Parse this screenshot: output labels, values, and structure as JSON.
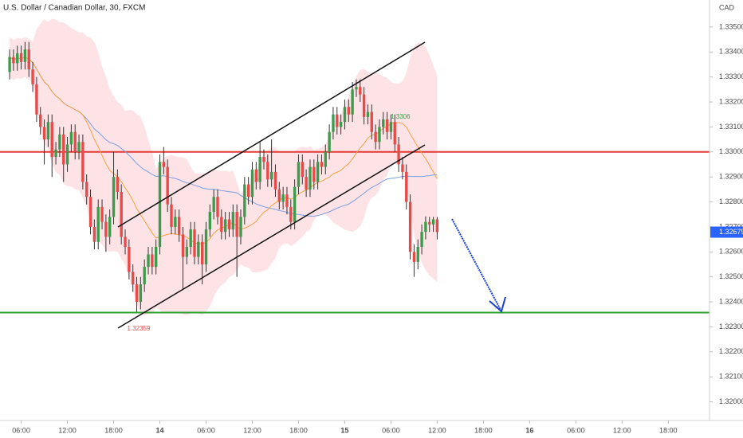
{
  "chart_data": {
    "type": "candlestick",
    "title": "U.S. Dollar / Canadian Dollar, 30, FXCM",
    "y_axis_label": "CAD",
    "up_color": "#3d9b4c",
    "down_color": "#e84a4a",
    "ylim": [
      1.33608,
      1.31919
    ],
    "yticks": [
      {
        "value": 1.335,
        "label": "1.33500"
      },
      {
        "value": 1.334,
        "label": "1.33400"
      },
      {
        "value": 1.333,
        "label": "1.33300"
      },
      {
        "value": 1.332,
        "label": "1.33200"
      },
      {
        "value": 1.331,
        "label": "1.33100"
      },
      {
        "value": 1.33,
        "label": "1.33000"
      },
      {
        "value": 1.329,
        "label": "1.32900"
      },
      {
        "value": 1.328,
        "label": "1.32800"
      },
      {
        "value": 1.327,
        "label": "1.32700"
      },
      {
        "value": 1.326,
        "label": "1.32600"
      },
      {
        "value": 1.325,
        "label": "1.32500"
      },
      {
        "value": 1.324,
        "label": "1.32400"
      },
      {
        "value": 1.323,
        "label": "1.32300"
      },
      {
        "value": 1.322,
        "label": "1.32200"
      },
      {
        "value": 1.321,
        "label": "1.32100"
      },
      {
        "value": 1.32,
        "label": "1.32000"
      }
    ],
    "xlim": [
      -2,
      182.2
    ],
    "xticks": [
      {
        "value": 3.5,
        "label": "06:00"
      },
      {
        "value": 15.5,
        "label": "12:00"
      },
      {
        "value": 27.5,
        "label": "18:00"
      },
      {
        "value": 39.5,
        "label": "14"
      },
      {
        "value": 51.5,
        "label": "06:00"
      },
      {
        "value": 63.5,
        "label": "12:00"
      },
      {
        "value": 75.5,
        "label": "18:00"
      },
      {
        "value": 87.5,
        "label": "15"
      },
      {
        "value": 99.5,
        "label": "06:00"
      },
      {
        "value": 111.5,
        "label": "12:00"
      },
      {
        "value": 123.5,
        "label": "18:00"
      },
      {
        "value": 135.5,
        "label": "16"
      },
      {
        "value": 147.5,
        "label": "06:00"
      },
      {
        "value": 159.5,
        "label": "12:00"
      },
      {
        "value": 171.5,
        "label": "18:00"
      }
    ],
    "levels": [
      {
        "value": 1.33,
        "color": "#e53935"
      },
      {
        "value": 1.32357,
        "color": "#2ca02c"
      }
    ],
    "candles": [
      [
        1.3332,
        1.3341,
        1.3329,
        1.3338
      ],
      [
        1.3338,
        1.3341,
        1.33325,
        1.33355
      ],
      [
        1.33355,
        1.33425,
        1.33325,
        1.33395
      ],
      [
        1.33395,
        1.33425,
        1.3333,
        1.3336
      ],
      [
        1.3336,
        1.3344,
        1.3333,
        1.3341
      ],
      [
        1.3341,
        1.3344,
        1.333,
        1.3333
      ],
      [
        1.3333,
        1.3336,
        1.3324,
        1.3327
      ],
      [
        1.3327,
        1.333,
        1.3312,
        1.3315
      ],
      [
        1.3315,
        1.3318,
        1.3307,
        1.331
      ],
      [
        1.331,
        1.3313,
        1.3295,
        1.3305
      ],
      [
        1.3305,
        1.3315,
        1.3302,
        1.3312
      ],
      [
        1.3312,
        1.3315,
        1.329,
        1.3298
      ],
      [
        1.3298,
        1.3304,
        1.3295,
        1.3301
      ],
      [
        1.3301,
        1.331,
        1.3298,
        1.3307
      ],
      [
        1.3307,
        1.331,
        1.3288,
        1.3295
      ],
      [
        1.3295,
        1.3306,
        1.3292,
        1.3303
      ],
      [
        1.3303,
        1.3311,
        1.33,
        1.3308
      ],
      [
        1.3308,
        1.3311,
        1.3297,
        1.33
      ],
      [
        1.33,
        1.3307,
        1.3297,
        1.3304
      ],
      [
        1.3304,
        1.3307,
        1.3285,
        1.3288
      ],
      [
        1.3288,
        1.3291,
        1.3279,
        1.3282
      ],
      [
        1.3282,
        1.3285,
        1.3267,
        1.327
      ],
      [
        1.327,
        1.3273,
        1.3261,
        1.3264
      ],
      [
        1.3264,
        1.3281,
        1.3261,
        1.3278
      ],
      [
        1.3278,
        1.3281,
        1.3269,
        1.3272
      ],
      [
        1.3272,
        1.3275,
        1.326,
        1.3266
      ],
      [
        1.3266,
        1.3277,
        1.3263,
        1.3274
      ],
      [
        1.3274,
        1.33,
        1.3271,
        1.329
      ],
      [
        1.329,
        1.3293,
        1.3281,
        1.3284
      ],
      [
        1.3284,
        1.3287,
        1.3263,
        1.3266
      ],
      [
        1.3266,
        1.3269,
        1.3259,
        1.3262
      ],
      [
        1.3262,
        1.3265,
        1.3249,
        1.3252
      ],
      [
        1.3252,
        1.3255,
        1.3244,
        1.3247
      ],
      [
        1.3247,
        1.325,
        1.32359,
        1.324
      ],
      [
        1.324,
        1.325,
        1.3237,
        1.3247
      ],
      [
        1.3247,
        1.3257,
        1.3244,
        1.3254
      ],
      [
        1.3254,
        1.3262,
        1.3251,
        1.3259
      ],
      [
        1.3259,
        1.3262,
        1.3251,
        1.3254
      ],
      [
        1.3254,
        1.3265,
        1.3251,
        1.3262
      ],
      [
        1.3262,
        1.3299,
        1.3259,
        1.3296
      ],
      [
        1.3296,
        1.3302,
        1.3291,
        1.3294
      ],
      [
        1.3294,
        1.3297,
        1.3276,
        1.3279
      ],
      [
        1.3279,
        1.3282,
        1.3267,
        1.327
      ],
      [
        1.327,
        1.3277,
        1.3267,
        1.3274
      ],
      [
        1.3274,
        1.3277,
        1.3264,
        1.3267
      ],
      [
        1.3267,
        1.327,
        1.3245,
        1.3258
      ],
      [
        1.3258,
        1.3265,
        1.3255,
        1.3262
      ],
      [
        1.3262,
        1.3272,
        1.3259,
        1.3269
      ],
      [
        1.3269,
        1.3272,
        1.3255,
        1.3258
      ],
      [
        1.3258,
        1.3267,
        1.3255,
        1.3264
      ],
      [
        1.3264,
        1.3267,
        1.3247,
        1.3255
      ],
      [
        1.3255,
        1.3272,
        1.3252,
        1.3269
      ],
      [
        1.3269,
        1.3279,
        1.3266,
        1.3276
      ],
      [
        1.3276,
        1.3285,
        1.3273,
        1.3282
      ],
      [
        1.3282,
        1.3285,
        1.3271,
        1.3274
      ],
      [
        1.3274,
        1.3277,
        1.3265,
        1.3268
      ],
      [
        1.3268,
        1.3276,
        1.3265,
        1.3273
      ],
      [
        1.3273,
        1.3276,
        1.3266,
        1.3269
      ],
      [
        1.3269,
        1.3279,
        1.3266,
        1.3276
      ],
      [
        1.3276,
        1.3279,
        1.325,
        1.3266
      ],
      [
        1.3266,
        1.3277,
        1.3263,
        1.3274
      ],
      [
        1.3274,
        1.329,
        1.3271,
        1.3287
      ],
      [
        1.3287,
        1.329,
        1.3279,
        1.3282
      ],
      [
        1.3282,
        1.3296,
        1.3279,
        1.3293
      ],
      [
        1.3293,
        1.3296,
        1.3285,
        1.3288
      ],
      [
        1.3288,
        1.3304,
        1.3285,
        1.3298
      ],
      [
        1.3298,
        1.3301,
        1.3293,
        1.3296
      ],
      [
        1.3296,
        1.3299,
        1.3286,
        1.3289
      ],
      [
        1.3289,
        1.3305,
        1.3286,
        1.3292
      ],
      [
        1.3292,
        1.3295,
        1.3282,
        1.3285
      ],
      [
        1.3285,
        1.3288,
        1.3277,
        1.328
      ],
      [
        1.328,
        1.3286,
        1.3277,
        1.3283
      ],
      [
        1.3283,
        1.3286,
        1.3275,
        1.3278
      ],
      [
        1.3278,
        1.3281,
        1.3269,
        1.3272
      ],
      [
        1.3272,
        1.3289,
        1.3269,
        1.3286
      ],
      [
        1.3286,
        1.3299,
        1.3283,
        1.3296
      ],
      [
        1.3296,
        1.3299,
        1.3287,
        1.329
      ],
      [
        1.329,
        1.3293,
        1.3282,
        1.3285
      ],
      [
        1.3285,
        1.3297,
        1.3282,
        1.3294
      ],
      [
        1.3294,
        1.3297,
        1.3285,
        1.3288
      ],
      [
        1.3288,
        1.3299,
        1.3285,
        1.3296
      ],
      [
        1.3296,
        1.3299,
        1.3291,
        1.3294
      ],
      [
        1.3294,
        1.3303,
        1.3291,
        1.33
      ],
      [
        1.33,
        1.3311,
        1.3297,
        1.3308
      ],
      [
        1.3308,
        1.3318,
        1.3305,
        1.3315
      ],
      [
        1.3315,
        1.3318,
        1.3307,
        1.331
      ],
      [
        1.331,
        1.3315,
        1.3307,
        1.3312
      ],
      [
        1.3312,
        1.3321,
        1.3309,
        1.3318
      ],
      [
        1.3318,
        1.3321,
        1.3312,
        1.3315
      ],
      [
        1.3315,
        1.3328,
        1.3312,
        1.3325
      ],
      [
        1.3325,
        1.3329,
        1.3322,
        1.3326
      ],
      [
        1.3326,
        1.3329,
        1.332,
        1.3323
      ],
      [
        1.3323,
        1.3326,
        1.3311,
        1.3314
      ],
      [
        1.3314,
        1.3319,
        1.3311,
        1.3316
      ],
      [
        1.3316,
        1.3319,
        1.3305,
        1.3308
      ],
      [
        1.3308,
        1.3311,
        1.3301,
        1.3304
      ],
      [
        1.3304,
        1.3313,
        1.3301,
        1.331
      ],
      [
        1.331,
        1.3316,
        1.3307,
        1.3313
      ],
      [
        1.3313,
        1.3316,
        1.3305,
        1.3308
      ],
      [
        1.3308,
        1.3315,
        1.3305,
        1.3312
      ],
      [
        1.3312,
        1.3315,
        1.33,
        1.3303
      ],
      [
        1.3303,
        1.3306,
        1.3292,
        1.3295
      ],
      [
        1.3295,
        1.3298,
        1.3289,
        1.3292
      ],
      [
        1.3292,
        1.3295,
        1.3277,
        1.328
      ],
      [
        1.328,
        1.3283,
        1.3257,
        1.326
      ],
      [
        1.326,
        1.3263,
        1.325,
        1.3256
      ],
      [
        1.3256,
        1.3265,
        1.3253,
        1.3262
      ],
      [
        1.3262,
        1.3271,
        1.3259,
        1.3268
      ],
      [
        1.3268,
        1.32742,
        1.3265,
        1.3272
      ],
      [
        1.3272,
        1.3274,
        1.3268,
        1.3271
      ],
      [
        1.3271,
        1.3274,
        1.3268,
        1.3273
      ],
      [
        1.3273,
        1.3274,
        1.3265,
        1.32679
      ]
    ]
  }
}
